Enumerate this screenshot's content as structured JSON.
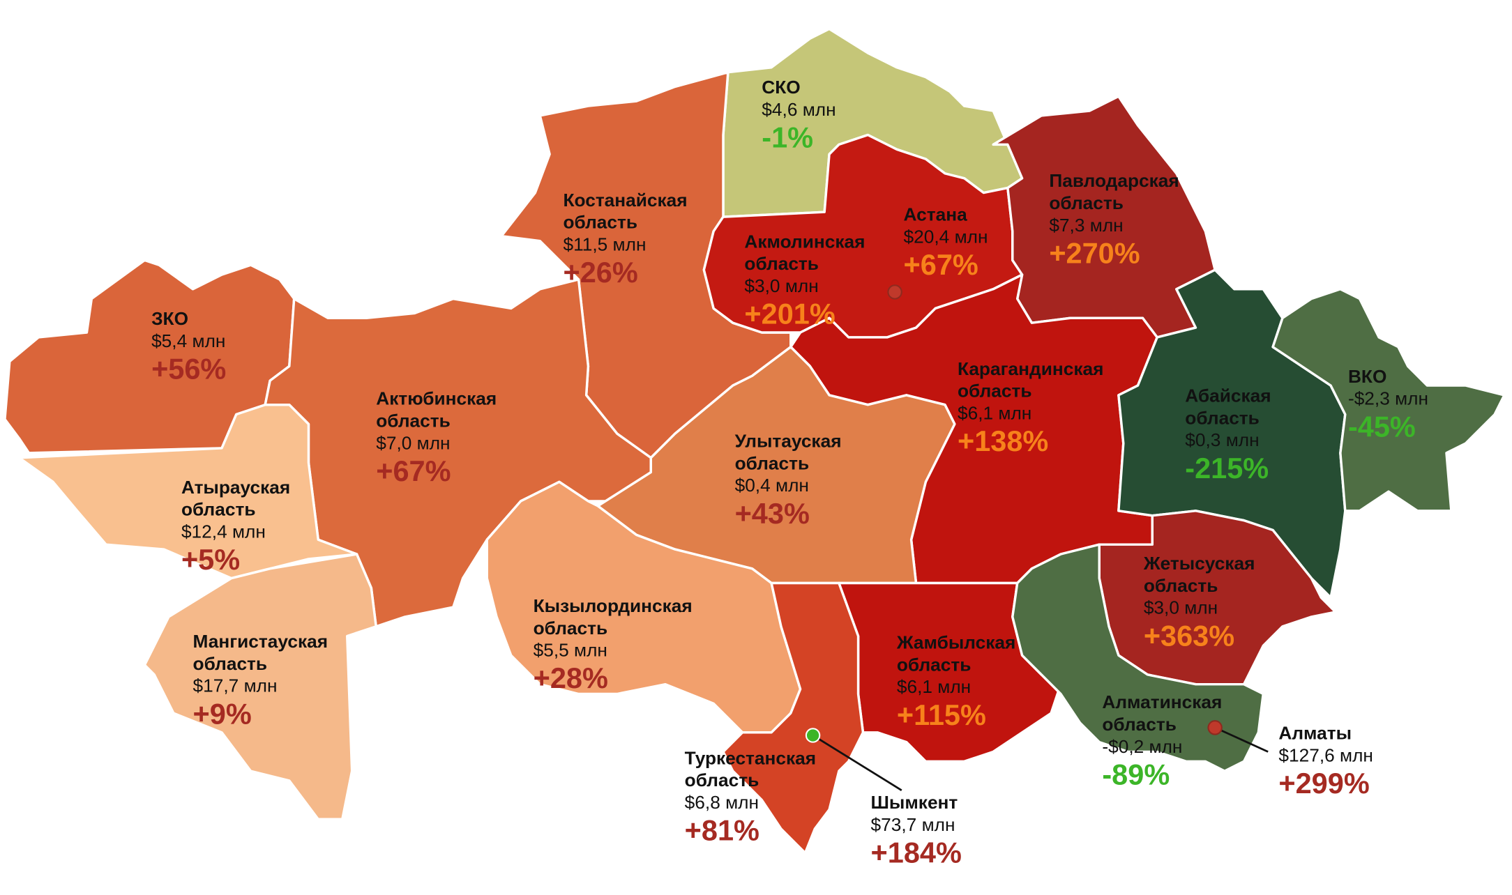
{
  "regions": [
    {
      "name": "СКО",
      "value": "$4,6 млн",
      "change": "-1%",
      "color": "#c5c678",
      "change_color": "#3cb528"
    },
    {
      "name": "Костанайская\nобласть",
      "value": "$11,5 млн",
      "change": "+26%",
      "color": "#da653a",
      "change_color": "#a52a22"
    },
    {
      "name": "Акмолинская\nобласть",
      "value": "$3,0 млн",
      "change": "+201%",
      "color": "#c41a12",
      "change_color": "#f7821b"
    },
    {
      "name": "Павлодарская\nобласть",
      "value": "$7,3 млн",
      "change": "+270%",
      "color": "#a52520",
      "change_color": "#f7821b"
    },
    {
      "name": "ЗКО",
      "value": "$5,4 млн",
      "change": "+56%",
      "color": "#da653a",
      "change_color": "#a52a22"
    },
    {
      "name": "Актюбинская\nобласть",
      "value": "$7,0 млн",
      "change": "+67%",
      "color": "#dc6a3c",
      "change_color": "#a52a22"
    },
    {
      "name": "Карагандинская\nобласть",
      "value": "$6,1 млн",
      "change": "+138%",
      "color": "#c0140e",
      "change_color": "#f7821b"
    },
    {
      "name": "Абайская\nобласть",
      "value": "$0,3 млн",
      "change": "-215%",
      "color": "#264d33",
      "change_color": "#3cb528"
    },
    {
      "name": "ВКО",
      "value": "-$2,3 млн",
      "change": "-45%",
      "color": "#4f6e44",
      "change_color": "#3cb528"
    },
    {
      "name": "Улытауская\nобласть",
      "value": "$0,4 млн",
      "change": "+43%",
      "color": "#e07f4a",
      "change_color": "#a52a22"
    },
    {
      "name": "Атырауская\nобласть",
      "value": "$12,4 млн",
      "change": "+5%",
      "color": "#f9c08f",
      "change_color": "#a52a22"
    },
    {
      "name": "Кызылординская\nобласть",
      "value": "$5,5 млн",
      "change": "+28%",
      "color": "#f2a06d",
      "change_color": "#a52a22"
    },
    {
      "name": "Жетысуская\nобласть",
      "value": "$3,0 млн",
      "change": "+363%",
      "color": "#a52520",
      "change_color": "#f7821b"
    },
    {
      "name": "Мангистауская\nобласть",
      "value": "$17,7 млн",
      "change": "+9%",
      "color": "#f5b98a",
      "change_color": "#a52a22"
    },
    {
      "name": "Жамбылская\nобласть",
      "value": "$6,1 млн",
      "change": "+115%",
      "color": "#c0140e",
      "change_color": "#f7821b"
    },
    {
      "name": "Алматинская\nобласть",
      "value": "-$0,2 млн",
      "change": "-89%",
      "color": "#4f6e44",
      "change_color": "#3cb528"
    },
    {
      "name": "Туркестанская\nобласть",
      "value": "$6,8 млн",
      "change": "+81%",
      "color": "#d44325",
      "change_color": "#a52a22"
    }
  ],
  "cities": [
    {
      "name": "Астана",
      "value": "$20,4 млн",
      "change": "+67%",
      "color": "#c0392b",
      "change_color": "#f7821b"
    },
    {
      "name": "Шымкент",
      "value": "$73,7 млн",
      "change": "+184%",
      "color": "#3cb528",
      "change_color": "#a52a22"
    },
    {
      "name": "Алматы",
      "value": "$127,6 млн",
      "change": "+299%",
      "color": "#c0392b",
      "change_color": "#a52a22"
    }
  ]
}
